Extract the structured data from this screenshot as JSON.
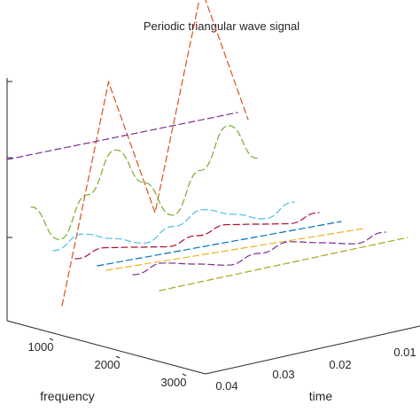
{
  "chart_data": {
    "type": "line",
    "view": "3d",
    "title": "Periodic triangular wave signal",
    "axes": {
      "x": {
        "label": "time",
        "ticks": [
          "0.01",
          "0.02",
          "0.03",
          "0.04"
        ],
        "range": [
          0.0,
          0.04
        ]
      },
      "y": {
        "label": "frequency",
        "ticks": [
          "1000",
          "2000",
          "3000"
        ],
        "range": [
          0,
          3000
        ]
      }
    },
    "grid": false,
    "series": [
      {
        "color": "#d95319",
        "style": "dashed",
        "points": [
          [
            0.0,
            -1.0
          ],
          [
            0.01,
            1.0
          ],
          [
            0.02,
            -1.0
          ],
          [
            0.03,
            1.0
          ],
          [
            0.04,
            -1.0
          ]
        ]
      },
      {
        "color": "#7e2f8e",
        "style": "dashed",
        "points": [
          [
            0.0,
            0.0
          ],
          [
            0.04,
            0.0
          ]
        ]
      },
      {
        "color": "#77ac30",
        "style": "dashed",
        "points": [
          [
            0.0,
            -0.15
          ],
          [
            0.005,
            -0.38
          ],
          [
            0.01,
            -0.15
          ],
          [
            0.015,
            0.08
          ],
          [
            0.02,
            -0.15
          ],
          [
            0.025,
            -0.38
          ],
          [
            0.03,
            -0.15
          ],
          [
            0.035,
            0.08
          ],
          [
            0.04,
            -0.15
          ]
        ]
      },
      {
        "color": "#4dbeee",
        "style": "dashed",
        "points": [
          [
            0.0,
            0.0
          ],
          [
            0.005,
            0.04
          ],
          [
            0.01,
            0.0
          ],
          [
            0.015,
            -0.04
          ],
          [
            0.02,
            0.0
          ],
          [
            0.025,
            0.04
          ],
          [
            0.03,
            0.0
          ],
          [
            0.035,
            -0.04
          ],
          [
            0.04,
            0.0
          ]
        ]
      },
      {
        "color": "#a2142f",
        "style": "dashed",
        "points": [
          [
            0.0,
            0.0
          ],
          [
            0.005,
            0.02
          ],
          [
            0.01,
            0.0
          ],
          [
            0.015,
            -0.02
          ],
          [
            0.02,
            0.0
          ],
          [
            0.025,
            0.02
          ],
          [
            0.03,
            0.0
          ],
          [
            0.035,
            -0.02
          ],
          [
            0.04,
            0.0
          ]
        ]
      },
      {
        "color": "#0072bd",
        "style": "dashed",
        "points": [
          [
            0.0,
            0.0
          ],
          [
            0.04,
            0.0
          ]
        ]
      },
      {
        "color": "#edb120",
        "style": "dashed",
        "points": [
          [
            0.0,
            0.0
          ],
          [
            0.04,
            0.0
          ]
        ]
      },
      {
        "color": "#7e2f8e",
        "style": "dashed",
        "points": [
          [
            0.0,
            0.0
          ],
          [
            0.005,
            0.012
          ],
          [
            0.01,
            0.0
          ],
          [
            0.015,
            -0.012
          ],
          [
            0.02,
            0.0
          ],
          [
            0.025,
            0.012
          ],
          [
            0.03,
            0.0
          ],
          [
            0.035,
            -0.012
          ],
          [
            0.04,
            0.0
          ]
        ]
      },
      {
        "color": "#a6a61a",
        "style": "dashed",
        "points": [
          [
            0.0,
            0.0
          ],
          [
            0.04,
            0.0
          ]
        ]
      }
    ]
  }
}
